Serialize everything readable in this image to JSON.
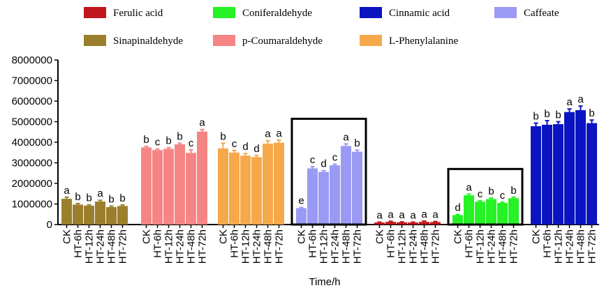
{
  "chart_data": {
    "type": "bar",
    "title": "",
    "xlabel": "Time/h",
    "ylabel": "",
    "ylim": [
      0,
      8000000
    ],
    "yticks": [
      "0",
      "1000000",
      "2000000",
      "3000000",
      "4000000",
      "5000000",
      "6000000",
      "7000000",
      "8000000"
    ],
    "ytick_values": [
      0,
      1000000,
      2000000,
      3000000,
      4000000,
      5000000,
      6000000,
      7000000,
      8000000
    ],
    "categories": [
      "CK",
      "HT-6h",
      "HT-12h",
      "HT-24h",
      "HT-48h",
      "HT-72h"
    ],
    "legend_position": "top",
    "series": [
      {
        "name": "Sinapinaldehyde",
        "color": "#9b7f2c",
        "values": [
          1250000,
          970000,
          920000,
          1120000,
          850000,
          900000
        ],
        "errors": [
          80000,
          50000,
          40000,
          60000,
          50000,
          50000
        ],
        "letters": [
          "a",
          "b",
          "b",
          "a",
          "b",
          "b"
        ],
        "boxed": false
      },
      {
        "name": "p-Coumaraldehyde",
        "color": "#f58585",
        "values": [
          3750000,
          3620000,
          3680000,
          3900000,
          3480000,
          4520000
        ],
        "errors": [
          50000,
          50000,
          60000,
          50000,
          150000,
          100000
        ],
        "letters": [
          "b",
          "c",
          "b",
          "b",
          "c",
          "a"
        ],
        "boxed": false
      },
      {
        "name": "L-Phenylalanine",
        "color": "#f5a94a",
        "values": [
          3700000,
          3500000,
          3350000,
          3280000,
          3930000,
          3980000
        ],
        "errors": [
          250000,
          100000,
          100000,
          80000,
          150000,
          120000
        ],
        "letters": [
          "b",
          "c",
          "d",
          "d",
          "a",
          "a"
        ],
        "boxed": false
      },
      {
        "name": "Caffeate",
        "color": "#9a9af5",
        "values": [
          800000,
          2730000,
          2560000,
          2880000,
          3820000,
          3540000
        ],
        "errors": [
          30000,
          80000,
          60000,
          50000,
          100000,
          80000
        ],
        "letters": [
          "e",
          "c",
          "d",
          "c",
          "a",
          "b"
        ],
        "boxed": true
      },
      {
        "name": "Ferulic acid",
        "color": "#c0161c",
        "values": [
          100000,
          130000,
          110000,
          100000,
          130000,
          120000
        ],
        "errors": [
          20000,
          30000,
          20000,
          20000,
          40000,
          30000
        ],
        "letters": [
          "a",
          "a",
          "a",
          "a",
          "a",
          "a"
        ],
        "boxed": false
      },
      {
        "name": "Coniferaldehyde",
        "color": "#26f226",
        "values": [
          460000,
          1420000,
          1110000,
          1240000,
          1050000,
          1280000
        ],
        "errors": [
          30000,
          60000,
          50000,
          50000,
          40000,
          50000
        ],
        "letters": [
          "d",
          "a",
          "c",
          "b",
          "c",
          "b"
        ],
        "boxed": true
      },
      {
        "name": "Cinnamic acid",
        "color": "#0a14c0",
        "values": [
          4780000,
          4850000,
          4880000,
          5470000,
          5560000,
          4930000
        ],
        "errors": [
          150000,
          200000,
          120000,
          150000,
          200000,
          150000
        ],
        "letters": [
          "b",
          "b",
          "b",
          "a",
          "a",
          "b"
        ],
        "boxed": false
      }
    ],
    "legend": [
      {
        "label": "Ferulic acid",
        "color": "#c0161c"
      },
      {
        "label": "Coniferaldehyde",
        "color": "#26f226"
      },
      {
        "label": "Cinnamic acid",
        "color": "#0a14c0"
      },
      {
        "label": "Caffeate",
        "color": "#9a9af5"
      },
      {
        "label": "Sinapinaldehyde",
        "color": "#9b7f2c"
      },
      {
        "label": "p-Coumaraldehyde",
        "color": "#f58585"
      },
      {
        "label": "L-Phenylalanine",
        "color": "#f5a94a"
      }
    ]
  }
}
